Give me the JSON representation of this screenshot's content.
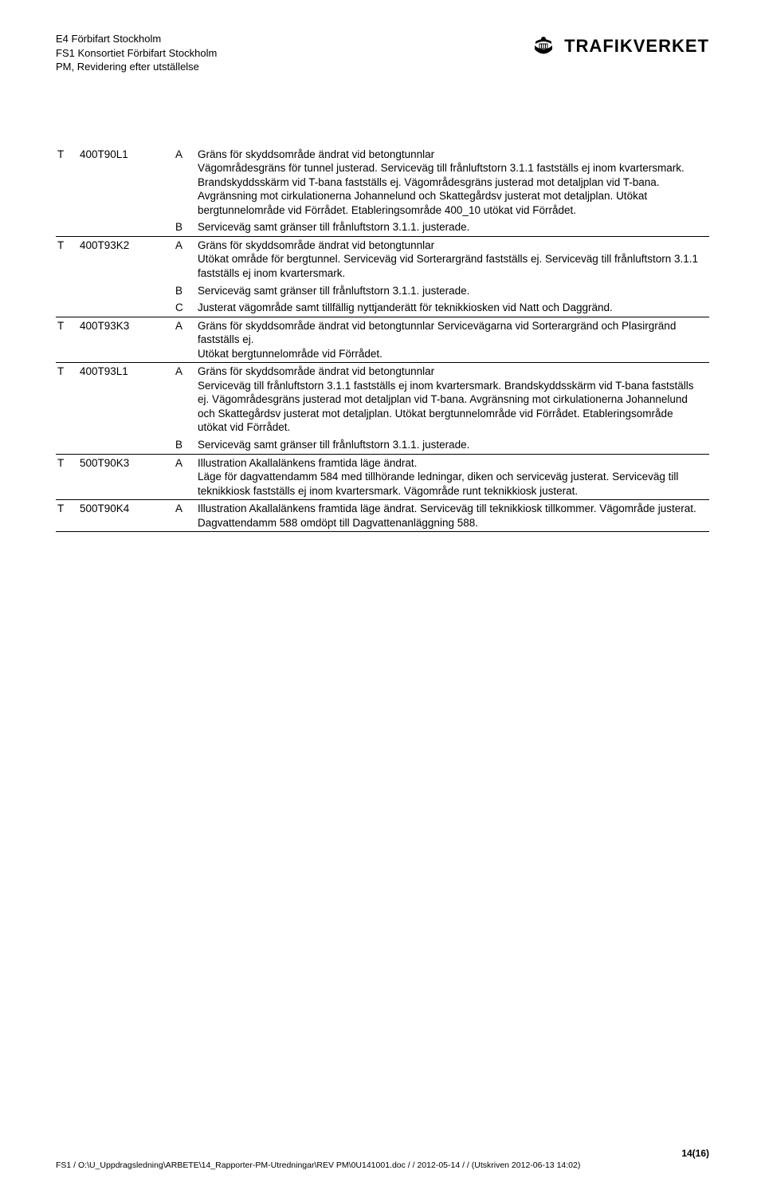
{
  "header": {
    "line1": "E4 Förbifart Stockholm",
    "line2": "FS1 Konsortiet Förbifart Stockholm",
    "line3": "PM, Revidering efter utställelse",
    "logo_text": "TRAFIKVERKET"
  },
  "rows": [
    {
      "t": "T",
      "code": "400T90L1",
      "letter": "A",
      "desc": "Gräns för skyddsområde ändrat vid betongtunnlar\nVägområdesgräns för tunnel justerad. Serviceväg till frånluftstorn 3.1.1 fastställs ej inom kvartersmark. Brandskyddsskärm vid T-bana fastställs ej. Vägområdesgräns justerad mot detaljplan vid T-bana. Avgränsning mot cirkulationerna Johannelund och Skattegårdsv justerat mot detaljplan. Utökat bergtunnelområde vid Förrådet. Etableringsområde 400_10 utökat vid Förrådet.",
      "sep": false
    },
    {
      "t": "",
      "code": "",
      "letter": "B",
      "desc": "Serviceväg samt gränser till frånluftstorn 3.1.1. justerade.",
      "sep": true
    },
    {
      "t": "T",
      "code": "400T93K2",
      "letter": "A",
      "desc": "Gräns för skyddsområde ändrat vid betongtunnlar\nUtökat område för bergtunnel. Serviceväg vid Sorterargränd fastställs ej. Serviceväg till frånluftstorn 3.1.1 fastställs ej inom kvartersmark.",
      "sep": false
    },
    {
      "t": "",
      "code": "",
      "letter": "B",
      "desc": "Serviceväg samt gränser till frånluftstorn 3.1.1. justerade.",
      "sep": false
    },
    {
      "t": "",
      "code": "",
      "letter": "C",
      "desc": "Justerat vägområde samt tillfällig nyttjanderätt för teknikkiosken vid Natt och Daggränd.",
      "sep": true
    },
    {
      "t": "T",
      "code": "400T93K3",
      "letter": "A",
      "desc": "Gräns för skyddsområde ändrat vid betongtunnlar Servicevägarna vid Sorterargränd och Plasirgränd fastställs ej.\nUtökat bergtunnelområde vid Förrådet.",
      "sep": true
    },
    {
      "t": "T",
      "code": "400T93L1",
      "letter": "A",
      "desc": "Gräns för skyddsområde ändrat vid betongtunnlar\nServiceväg till frånluftstorn 3.1.1 fastställs ej inom kvartersmark. Brandskyddsskärm vid T-bana fastställs ej. Vägområdesgräns justerad mot detaljplan vid T-bana. Avgränsning mot cirkulationerna Johannelund och Skattegårdsv justerat mot detaljplan. Utökat bergtunnelområde vid Förrådet. Etableringsområde utökat vid Förrådet.",
      "sep": false
    },
    {
      "t": "",
      "code": "",
      "letter": "B",
      "desc": "Serviceväg samt gränser till frånluftstorn 3.1.1. justerade.",
      "sep": true
    },
    {
      "t": "T",
      "code": "500T90K3",
      "letter": "A",
      "desc": "Illustration Akallalänkens framtida läge ändrat.\nLäge för dagvattendamm 584 med tillhörande ledningar, diken och serviceväg justerat. Serviceväg till teknikkiosk fastställs ej inom kvartersmark. Vägområde runt teknikkiosk justerat.",
      "sep": true
    },
    {
      "t": "T",
      "code": "500T90K4",
      "letter": "A",
      "desc": "Illustration Akallalänkens framtida läge ändrat. Serviceväg till teknikkiosk tillkommer. Vägområde justerat. Dagvattendamm 588 omdöpt till Dagvattenanläggning 588.",
      "sep": true
    }
  ],
  "footer": {
    "page": "14(16)",
    "path": "FS1 / O:\\U_Uppdragsledning\\ARBETE\\14_Rapporter-PM-Utredningar\\REV PM\\0U141001.doc /  / 2012-05-14 /  / (Utskriven 2012-06-13 14:02)"
  }
}
